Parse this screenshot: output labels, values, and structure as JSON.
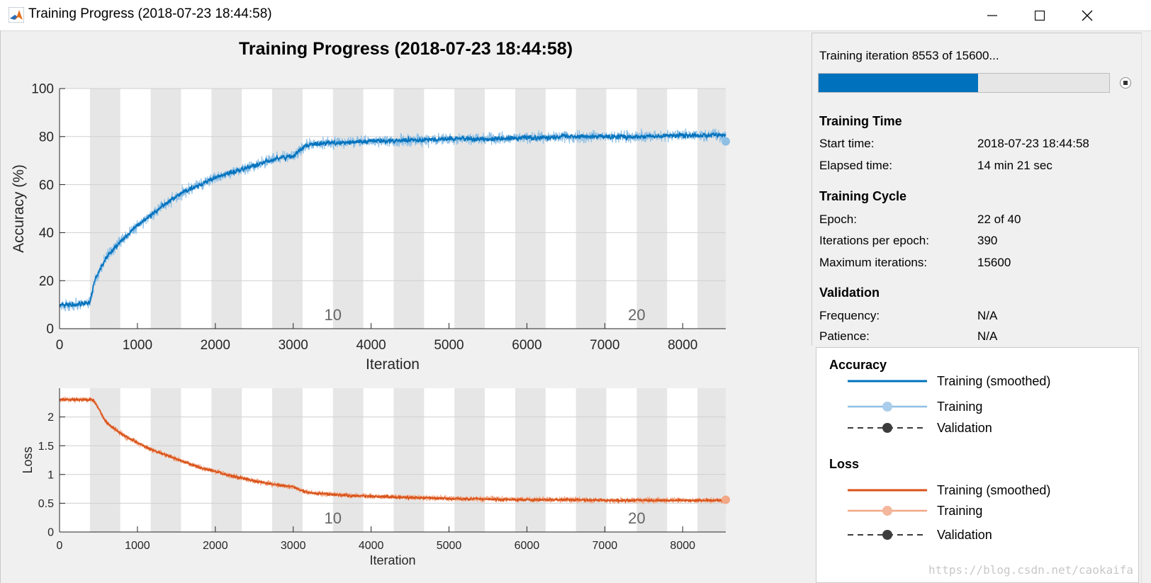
{
  "window": {
    "title": "Training Progress (2018-07-23 18:44:58)",
    "minimize_icon": "minimize-icon",
    "maximize_icon": "maximize-icon",
    "close_icon": "close-icon"
  },
  "plot_title": "Training Progress (2018-07-23 18:44:58)",
  "status": {
    "text": "Training iteration 8553 of 15600...",
    "progress_fraction": 0.548,
    "progress_color": "#0072bd"
  },
  "training_time": {
    "heading": "Training Time",
    "rows": [
      {
        "label": "Start time:",
        "value": "2018-07-23 18:44:58"
      },
      {
        "label": "Elapsed time:",
        "value": "14 min 21 sec"
      }
    ]
  },
  "training_cycle": {
    "heading": "Training Cycle",
    "rows": [
      {
        "label": "Epoch:",
        "value": "22 of 40"
      },
      {
        "label": "Iterations per epoch:",
        "value": "390"
      },
      {
        "label": "Maximum iterations:",
        "value": "15600"
      }
    ]
  },
  "validation": {
    "heading": "Validation",
    "rows": [
      {
        "label": "Frequency:",
        "value": "N/A"
      },
      {
        "label": "Patience:",
        "value": "N/A"
      }
    ]
  },
  "legend": {
    "accuracy_heading": "Accuracy",
    "accuracy_items": [
      "Training (smoothed)",
      "Training",
      "Validation"
    ],
    "loss_heading": "Loss",
    "loss_items": [
      "Training (smoothed)",
      "Training",
      "Validation"
    ]
  },
  "watermark": "https://blog.csdn.net/caokaifa",
  "colors": {
    "accuracy_smoothed": "#0072bd",
    "accuracy_raw": "#8fbfe5",
    "loss_smoothed": "#d95319",
    "loss_raw": "#f2a886",
    "validation": "#3c3c3c",
    "epoch_band": "#e6e6e6"
  },
  "chart_data": [
    {
      "type": "line",
      "xlabel": "Iteration",
      "ylabel": "Accuracy (%)",
      "xlim": [
        0,
        8553
      ],
      "ylim": [
        0,
        100
      ],
      "x_ticks": [
        "0",
        "1000",
        "2000",
        "3000",
        "4000",
        "5000",
        "6000",
        "7000",
        "8000"
      ],
      "y_ticks": [
        "0",
        "20",
        "40",
        "60",
        "80",
        "100"
      ],
      "epoch_labels": [
        {
          "epoch": "10",
          "x": 3510
        },
        {
          "epoch": "20",
          "x": 7410
        }
      ],
      "iterations_per_epoch": 390,
      "series": [
        {
          "x": [
            0,
            200,
            390,
            450,
            600,
            800,
            1000,
            1200,
            1400,
            1600,
            1800,
            2000,
            2200,
            2400,
            2600,
            2800,
            3000,
            3150,
            3300,
            3600,
            4000,
            4500,
            5000,
            5500,
            6000,
            6500,
            7000,
            7500,
            8000,
            8553
          ],
          "values": [
            10,
            10,
            11,
            20,
            30,
            37,
            43,
            48,
            53,
            57,
            60,
            63,
            65,
            67,
            69,
            71,
            72,
            76,
            77,
            77.5,
            78,
            78.5,
            79,
            79,
            79.5,
            80,
            80,
            80,
            80.5,
            80.5
          ]
        }
      ],
      "final_point": {
        "x": 8553,
        "y": 78
      }
    },
    {
      "type": "line",
      "xlabel": "Iteration",
      "ylabel": "Loss",
      "xlim": [
        0,
        8553
      ],
      "ylim": [
        0,
        2.5
      ],
      "x_ticks": [
        "0",
        "1000",
        "2000",
        "3000",
        "4000",
        "5000",
        "6000",
        "7000",
        "8000"
      ],
      "y_ticks": [
        "0",
        "0.5",
        "1",
        "1.5",
        "2"
      ],
      "epoch_labels": [
        {
          "epoch": "10",
          "x": 3510
        },
        {
          "epoch": "20",
          "x": 7410
        }
      ],
      "iterations_per_epoch": 390,
      "series": [
        {
          "x": [
            0,
            300,
            430,
            500,
            600,
            800,
            1000,
            1200,
            1400,
            1600,
            1800,
            2000,
            2200,
            2400,
            2600,
            2800,
            3000,
            3150,
            3300,
            3600,
            4000,
            4500,
            5000,
            5500,
            6000,
            6500,
            7000,
            7500,
            8000,
            8553
          ],
          "values": [
            2.3,
            2.3,
            2.3,
            2.15,
            1.9,
            1.7,
            1.55,
            1.42,
            1.32,
            1.22,
            1.12,
            1.05,
            0.98,
            0.92,
            0.86,
            0.82,
            0.78,
            0.7,
            0.67,
            0.64,
            0.62,
            0.6,
            0.58,
            0.57,
            0.56,
            0.56,
            0.55,
            0.55,
            0.55,
            0.55
          ]
        }
      ],
      "final_point": {
        "x": 8553,
        "y": 0.56
      }
    }
  ]
}
